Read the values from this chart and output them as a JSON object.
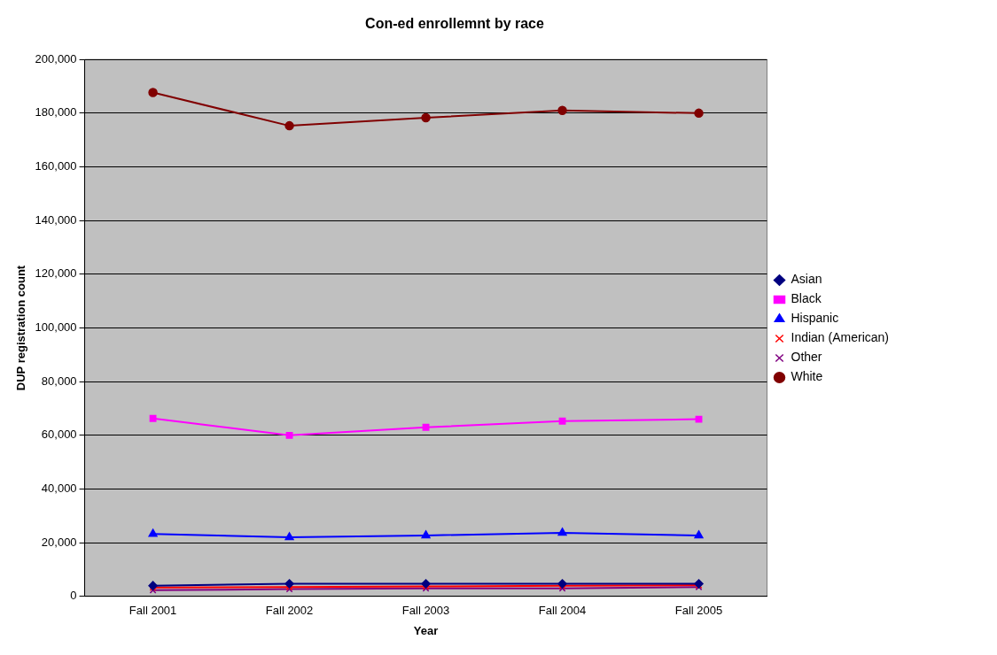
{
  "chart_data": {
    "type": "line",
    "title": "Con-ed enrollemnt by race",
    "xlabel": "Year",
    "ylabel": "DUP registration count",
    "categories": [
      "Fall 2001",
      "Fall 2002",
      "Fall 2003",
      "Fall 2004",
      "Fall 2005"
    ],
    "series": [
      {
        "name": "Asian",
        "color": "#000080",
        "marker": "diamond",
        "values": [
          4000,
          4700,
          4700,
          4700,
          4700
        ]
      },
      {
        "name": "Black",
        "color": "#ff00ff",
        "marker": "square",
        "values": [
          66300,
          60000,
          63000,
          65300,
          66000
        ]
      },
      {
        "name": "Hispanic",
        "color": "#0000ff",
        "marker": "triangle",
        "values": [
          23300,
          22000,
          22700,
          23700,
          22700
        ]
      },
      {
        "name": "Indian (American)",
        "color": "#ff0000",
        "marker": "cross",
        "values": [
          3300,
          3500,
          3700,
          4000,
          4200
        ]
      },
      {
        "name": "Other",
        "color": "#800080",
        "marker": "cross",
        "values": [
          2300,
          2700,
          3000,
          3000,
          3500
        ]
      },
      {
        "name": "White",
        "color": "#800000",
        "marker": "circle",
        "values": [
          187700,
          175300,
          178300,
          181000,
          180000
        ]
      }
    ],
    "ylim": [
      0,
      200000
    ],
    "yticks": [
      {
        "value": 0,
        "label": "0"
      },
      {
        "value": 20000,
        "label": "20,000"
      },
      {
        "value": 40000,
        "label": "40,000"
      },
      {
        "value": 60000,
        "label": "60,000"
      },
      {
        "value": 80000,
        "label": "80,000"
      },
      {
        "value": 100000,
        "label": "100,000"
      },
      {
        "value": 120000,
        "label": "120,000"
      },
      {
        "value": 140000,
        "label": "140,000"
      },
      {
        "value": 160000,
        "label": "160,000"
      },
      {
        "value": 180000,
        "label": "180,000"
      },
      {
        "value": 200000,
        "label": "200,000"
      }
    ],
    "grid": "y",
    "legend": "right",
    "line_style": "solid"
  }
}
